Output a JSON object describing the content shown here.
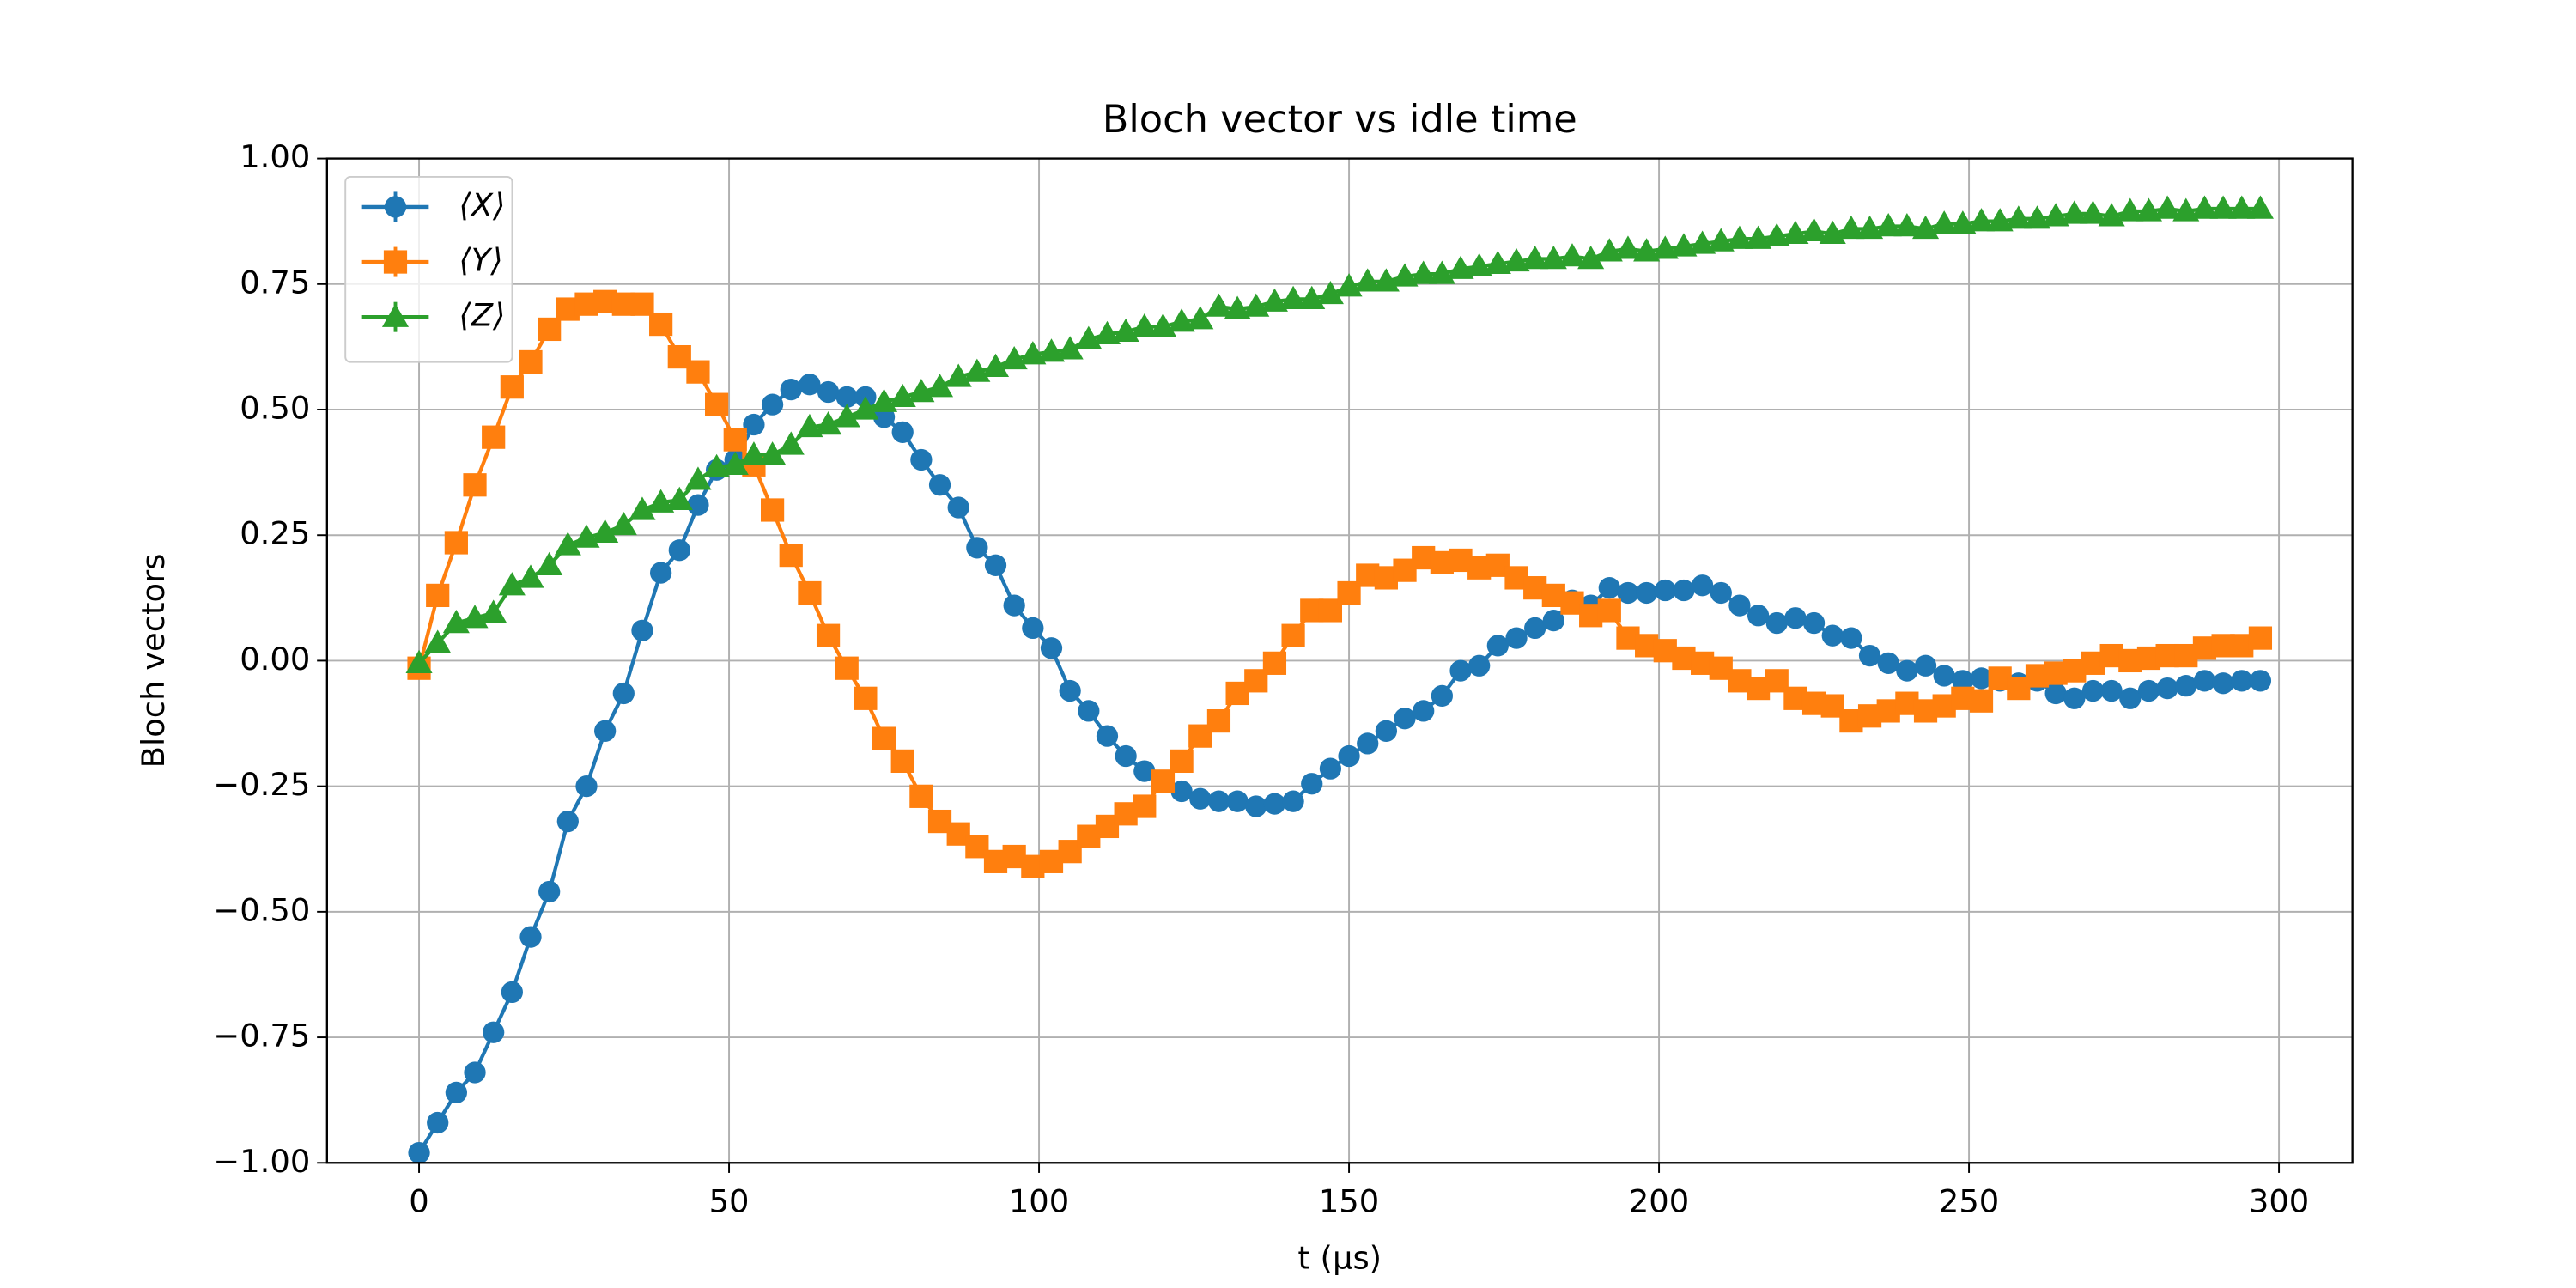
{
  "chart_data": {
    "type": "line",
    "title": "Bloch vector vs idle time",
    "xlabel": "t (μs)",
    "ylabel": "Bloch vectors",
    "x": [
      0,
      3,
      6,
      9,
      12,
      15,
      18,
      21,
      24,
      27,
      30,
      33,
      36,
      39,
      42,
      45,
      48,
      51,
      54,
      57,
      60,
      63,
      66,
      69,
      72,
      75,
      78,
      81,
      84,
      87,
      90,
      93,
      96,
      99,
      102,
      105,
      108,
      111,
      114,
      117,
      120,
      123,
      126,
      129,
      132,
      135,
      138,
      141,
      144,
      147,
      150,
      153,
      156,
      159,
      162,
      165,
      168,
      171,
      174,
      177,
      180,
      183,
      186,
      189,
      192,
      195,
      198,
      201,
      204,
      207,
      210,
      213,
      216,
      219,
      222,
      225,
      228,
      231,
      234,
      237,
      240,
      243,
      246,
      249,
      252,
      255,
      258,
      261,
      264,
      267,
      270,
      273,
      276,
      279,
      282,
      285,
      288,
      291,
      294,
      297
    ],
    "series": [
      {
        "name": "⟨X⟩",
        "color": "#1f77b4",
        "marker": "circle",
        "values": [
          -0.98,
          -0.92,
          -0.86,
          -0.82,
          -0.74,
          -0.66,
          -0.55,
          -0.46,
          -0.32,
          -0.25,
          -0.14,
          -0.065,
          0.06,
          0.175,
          0.22,
          0.31,
          0.38,
          0.4,
          0.47,
          0.51,
          0.54,
          0.55,
          0.535,
          0.525,
          0.525,
          0.485,
          0.455,
          0.4,
          0.35,
          0.305,
          0.225,
          0.19,
          0.11,
          0.065,
          0.025,
          -0.06,
          -0.1,
          -0.15,
          -0.19,
          -0.22,
          -0.24,
          -0.26,
          -0.275,
          -0.28,
          -0.28,
          -0.29,
          -0.285,
          -0.28,
          -0.245,
          -0.215,
          -0.19,
          -0.165,
          -0.14,
          -0.115,
          -0.1,
          -0.07,
          -0.02,
          -0.01,
          0.03,
          0.045,
          0.065,
          0.08,
          0.12,
          0.11,
          0.145,
          0.135,
          0.135,
          0.14,
          0.14,
          0.15,
          0.135,
          0.11,
          0.09,
          0.075,
          0.085,
          0.075,
          0.05,
          0.045,
          0.01,
          -0.005,
          -0.02,
          -0.01,
          -0.03,
          -0.04,
          -0.035,
          -0.04,
          -0.045,
          -0.04,
          -0.065,
          -0.075,
          -0.06,
          -0.06,
          -0.075,
          -0.06,
          -0.055,
          -0.05,
          -0.04,
          -0.045,
          -0.04,
          -0.04
        ]
      },
      {
        "name": "⟨Y⟩",
        "color": "#ff7f0e",
        "marker": "square",
        "values": [
          -0.015,
          0.13,
          0.235,
          0.35,
          0.445,
          0.545,
          0.595,
          0.66,
          0.7,
          0.71,
          0.715,
          0.71,
          0.71,
          0.67,
          0.605,
          0.575,
          0.51,
          0.44,
          0.39,
          0.3,
          0.21,
          0.135,
          0.05,
          -0.015,
          -0.075,
          -0.155,
          -0.2,
          -0.27,
          -0.32,
          -0.345,
          -0.37,
          -0.4,
          -0.39,
          -0.41,
          -0.4,
          -0.38,
          -0.35,
          -0.33,
          -0.305,
          -0.29,
          -0.24,
          -0.2,
          -0.15,
          -0.12,
          -0.065,
          -0.04,
          -0.005,
          0.05,
          0.1,
          0.1,
          0.135,
          0.17,
          0.165,
          0.18,
          0.205,
          0.195,
          0.2,
          0.185,
          0.19,
          0.165,
          0.145,
          0.13,
          0.115,
          0.09,
          0.1,
          0.045,
          0.03,
          0.02,
          0.005,
          -0.005,
          -0.015,
          -0.04,
          -0.055,
          -0.04,
          -0.075,
          -0.085,
          -0.09,
          -0.12,
          -0.11,
          -0.1,
          -0.085,
          -0.1,
          -0.09,
          -0.075,
          -0.08,
          -0.035,
          -0.055,
          -0.03,
          -0.025,
          -0.02,
          -0.005,
          0.01,
          0.0,
          0.005,
          0.01,
          0.01,
          0.025,
          0.03,
          0.03,
          0.045
        ]
      },
      {
        "name": "⟨Z⟩",
        "color": "#2ca02c",
        "marker": "triangle",
        "values": [
          -0.005,
          0.035,
          0.075,
          0.085,
          0.095,
          0.15,
          0.165,
          0.19,
          0.23,
          0.245,
          0.255,
          0.27,
          0.3,
          0.315,
          0.32,
          0.36,
          0.385,
          0.39,
          0.41,
          0.41,
          0.43,
          0.465,
          0.47,
          0.485,
          0.5,
          0.515,
          0.525,
          0.535,
          0.545,
          0.565,
          0.575,
          0.585,
          0.6,
          0.61,
          0.615,
          0.62,
          0.64,
          0.65,
          0.655,
          0.665,
          0.665,
          0.675,
          0.68,
          0.705,
          0.7,
          0.705,
          0.715,
          0.72,
          0.72,
          0.73,
          0.745,
          0.755,
          0.755,
          0.765,
          0.77,
          0.77,
          0.78,
          0.785,
          0.79,
          0.795,
          0.8,
          0.8,
          0.805,
          0.8,
          0.815,
          0.82,
          0.815,
          0.82,
          0.825,
          0.83,
          0.835,
          0.84,
          0.84,
          0.845,
          0.85,
          0.855,
          0.85,
          0.86,
          0.86,
          0.865,
          0.865,
          0.86,
          0.87,
          0.87,
          0.875,
          0.875,
          0.88,
          0.88,
          0.885,
          0.89,
          0.89,
          0.885,
          0.895,
          0.895,
          0.9,
          0.895,
          0.9,
          0.9,
          0.9,
          0.9
        ]
      }
    ],
    "xlim": [
      -14.85,
      311.85
    ],
    "ylim": [
      -1,
      1
    ],
    "xticks": [
      0,
      50,
      100,
      150,
      200,
      250,
      300
    ],
    "yticks": [
      {
        "value": -1,
        "label": "−1.00"
      },
      {
        "value": -0.75,
        "label": "−0.75"
      },
      {
        "value": -0.5,
        "label": "−0.50"
      },
      {
        "value": -0.25,
        "label": "−0.25"
      },
      {
        "value": 0,
        "label": "0.00"
      },
      {
        "value": 0.25,
        "label": "0.25"
      },
      {
        "value": 0.5,
        "label": "0.50"
      },
      {
        "value": 0.75,
        "label": "0.75"
      },
      {
        "value": 1,
        "label": "1.00"
      }
    ],
    "grid": true,
    "legend": "upper-left"
  }
}
